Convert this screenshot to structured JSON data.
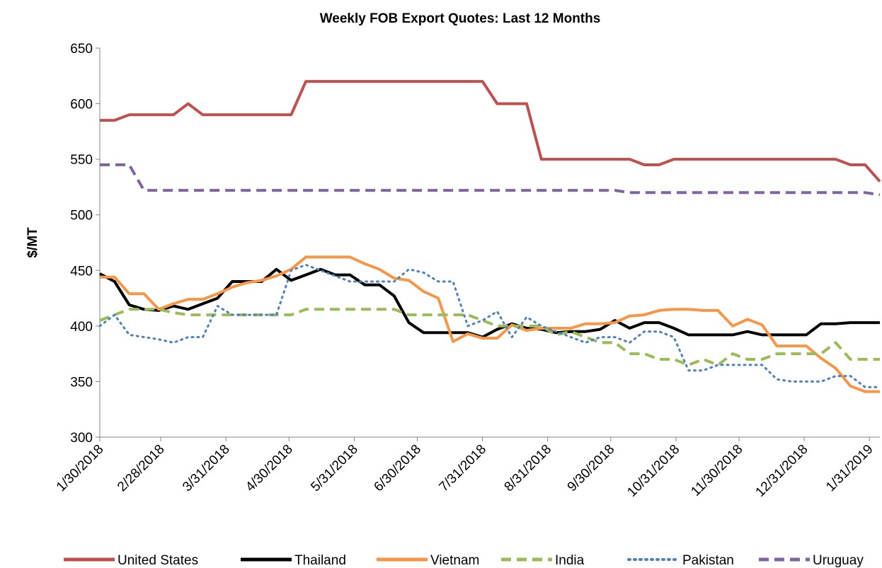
{
  "chart_data": {
    "type": "line",
    "title": "Weekly FOB Export Quotes:  Last 12 Months",
    "y_label": "$/MT",
    "x": [
      "1/30/2018",
      "2/6/2018",
      "2/13/2018",
      "2/20/2018",
      "2/27/2018",
      "3/6/2018",
      "3/13/2018",
      "3/20/2018",
      "3/27/2018",
      "4/3/2018",
      "4/10/2018",
      "4/17/2018",
      "4/24/2018",
      "5/1/2018",
      "5/8/2018",
      "5/15/2018",
      "5/22/2018",
      "5/29/2018",
      "6/5/2018",
      "6/12/2018",
      "6/19/2018",
      "6/26/2018",
      "7/3/2018",
      "7/10/2018",
      "7/17/2018",
      "7/24/2018",
      "7/31/2018",
      "8/7/2018",
      "8/14/2018",
      "8/21/2018",
      "8/28/2018",
      "9/4/2018",
      "9/11/2018",
      "9/18/2018",
      "9/25/2018",
      "10/2/2018",
      "10/9/2018",
      "10/16/2018",
      "10/23/2018",
      "10/30/2018",
      "11/6/2018",
      "11/13/2018",
      "11/20/2018",
      "11/27/2018",
      "12/4/2018",
      "12/11/2018",
      "12/18/2018",
      "12/25/2018",
      "1/1/2019",
      "1/8/2019",
      "1/15/2019",
      "1/22/2019",
      "1/29/2019",
      "2/5/2019"
    ],
    "xlim": [
      "1/30/2018",
      "2/5/2019"
    ],
    "xticks": [
      "1/30/2018",
      "2/28/2018",
      "3/31/2018",
      "4/30/2018",
      "5/31/2018",
      "6/30/2018",
      "7/31/2018",
      "8/31/2018",
      "9/30/2018",
      "10/31/2018",
      "11/30/2018",
      "12/31/2018",
      "1/31/2019"
    ],
    "ylim": [
      300,
      650
    ],
    "yticks": [
      300,
      350,
      400,
      450,
      500,
      550,
      600,
      650
    ],
    "grid": false,
    "legend": "bottom",
    "series": [
      {
        "name": "United States",
        "color": "#c0504d",
        "style": "solid",
        "values": [
          585,
          585,
          590,
          590,
          590,
          590,
          600,
          590,
          590,
          590,
          590,
          590,
          590,
          590,
          620,
          620,
          620,
          620,
          620,
          620,
          620,
          620,
          620,
          620,
          620,
          620,
          620,
          600,
          600,
          600,
          550,
          550,
          550,
          550,
          550,
          550,
          550,
          545,
          545,
          550,
          550,
          550,
          550,
          550,
          550,
          550,
          550,
          550,
          550,
          550,
          550,
          545,
          545,
          530
        ]
      },
      {
        "name": "Thailand",
        "color": "#000000",
        "style": "solid",
        "values": [
          447,
          440,
          419,
          415,
          414,
          418,
          415,
          420,
          425,
          440,
          440,
          440,
          451,
          441,
          446,
          451,
          446,
          446,
          437,
          437,
          427,
          403,
          394,
          394,
          394,
          394,
          390,
          397,
          402,
          398,
          397,
          394,
          395,
          395,
          397,
          405,
          398,
          403,
          403,
          398,
          392,
          392,
          392,
          392,
          395,
          392,
          392,
          392,
          392,
          402,
          402,
          403,
          403,
          403
        ]
      },
      {
        "name": "Vietnam",
        "color": "#f79646",
        "style": "solid",
        "values": [
          444,
          444,
          429,
          429,
          415,
          420,
          424,
          424,
          429,
          435,
          439,
          441,
          445,
          451,
          462,
          462,
          462,
          462,
          456,
          451,
          443,
          441,
          431,
          425,
          386,
          393,
          389,
          389,
          401,
          396,
          398,
          398,
          398,
          402,
          402,
          403,
          409,
          410,
          414,
          415,
          415,
          414,
          414,
          400,
          406,
          401,
          382,
          382,
          382,
          371,
          362,
          346,
          341,
          341
        ]
      },
      {
        "name": "India",
        "color": "#9bbb59",
        "style": "dashed",
        "values": [
          405,
          410,
          415,
          415,
          415,
          412,
          410,
          410,
          410,
          410,
          410,
          410,
          410,
          410,
          415,
          415,
          415,
          415,
          415,
          415,
          415,
          410,
          410,
          410,
          410,
          410,
          405,
          400,
          400,
          400,
          400,
          392,
          395,
          390,
          385,
          385,
          375,
          375,
          370,
          370,
          365,
          370,
          365,
          375,
          370,
          370,
          375,
          375,
          375,
          375,
          385,
          370,
          370,
          370
        ]
      },
      {
        "name": "Pakistan",
        "color": "#4f81bd",
        "style": "dotted",
        "values": [
          400,
          410,
          392,
          390,
          388,
          385,
          390,
          390,
          418,
          410,
          410,
          410,
          410,
          450,
          455,
          450,
          445,
          440,
          440,
          440,
          440,
          451,
          448,
          440,
          440,
          400,
          405,
          413,
          390,
          408,
          400,
          395,
          390,
          385,
          390,
          390,
          385,
          395,
          395,
          390,
          360,
          360,
          365,
          365,
          365,
          365,
          352,
          350,
          350,
          350,
          355,
          355,
          345,
          345
        ]
      },
      {
        "name": "Uruguay",
        "color": "#8064a2",
        "style": "dashed",
        "values": [
          545,
          545,
          545,
          522,
          522,
          522,
          522,
          522,
          522,
          522,
          522,
          522,
          522,
          522,
          522,
          522,
          522,
          522,
          522,
          522,
          522,
          522,
          522,
          522,
          522,
          522,
          522,
          522,
          522,
          522,
          522,
          522,
          522,
          522,
          522,
          522,
          520,
          520,
          520,
          520,
          520,
          520,
          520,
          520,
          520,
          520,
          520,
          520,
          520,
          520,
          520,
          520,
          520,
          518
        ]
      }
    ]
  }
}
